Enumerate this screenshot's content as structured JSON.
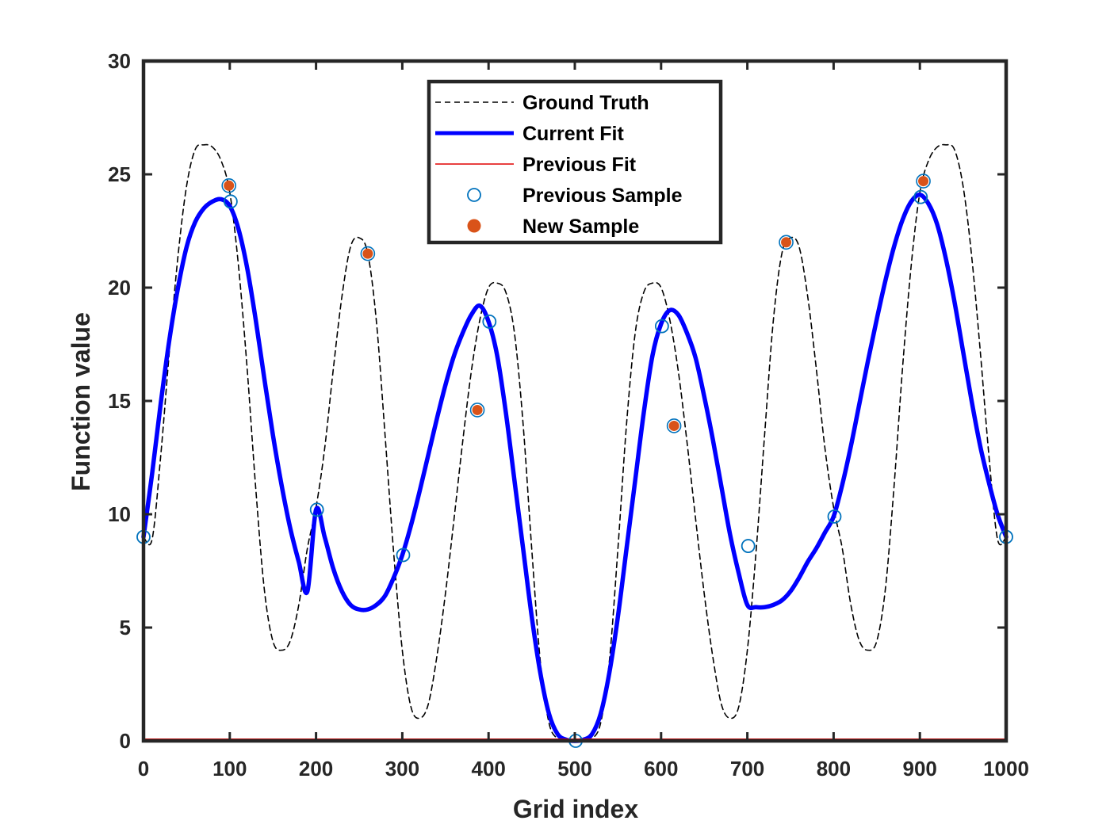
{
  "chart_data": {
    "type": "line",
    "title": "",
    "xlabel": "Grid index",
    "ylabel": "Function value",
    "xlim": [
      0,
      1000
    ],
    "ylim": [
      0,
      30
    ],
    "xticks": [
      0,
      100,
      200,
      300,
      400,
      500,
      600,
      700,
      800,
      900,
      1000
    ],
    "yticks": [
      0,
      5,
      10,
      15,
      20,
      25,
      30
    ],
    "grid": false,
    "legend_position": "top-center",
    "series": [
      {
        "name": "Ground Truth",
        "kind": "line",
        "style": "dashed",
        "color": "#000000",
        "x": [
          0,
          10,
          20,
          30,
          40,
          50,
          60,
          70,
          80,
          90,
          100,
          110,
          120,
          130,
          140,
          150,
          160,
          170,
          180,
          190,
          200,
          210,
          220,
          230,
          240,
          250,
          260,
          270,
          280,
          290,
          300,
          310,
          320,
          330,
          340,
          350,
          360,
          370,
          380,
          390,
          400,
          410,
          420,
          430,
          440,
          450,
          460,
          470,
          480,
          490,
          500,
          510,
          520,
          530,
          540,
          550,
          560,
          570,
          580,
          590,
          600,
          610,
          620,
          630,
          640,
          650,
          660,
          670,
          680,
          690,
          700,
          710,
          720,
          730,
          740,
          750,
          760,
          770,
          780,
          790,
          800,
          810,
          820,
          830,
          840,
          850,
          860,
          870,
          880,
          890,
          900,
          910,
          920,
          930,
          940,
          950,
          960,
          970,
          980,
          990,
          1000
        ],
        "y": [
          9.0,
          8.9,
          12.6,
          17.2,
          21.4,
          24.5,
          26.1,
          26.3,
          26.2,
          25.6,
          24.2,
          21.0,
          16.5,
          11.2,
          6.7,
          4.4,
          4.0,
          4.4,
          6.0,
          8.5,
          10.3,
          12.9,
          16.4,
          19.6,
          21.8,
          22.2,
          21.5,
          18.5,
          13.5,
          8.3,
          4.0,
          1.5,
          1.0,
          1.6,
          3.7,
          6.5,
          9.8,
          13.2,
          16.3,
          18.6,
          20.0,
          20.2,
          19.8,
          18.0,
          14.0,
          8.5,
          3.5,
          0.8,
          0.1,
          0.02,
          0.0,
          0.02,
          0.1,
          0.8,
          3.5,
          8.5,
          14.0,
          18.0,
          19.8,
          20.2,
          20.0,
          18.6,
          16.3,
          13.2,
          9.8,
          6.5,
          3.7,
          1.6,
          1.0,
          1.5,
          4.0,
          8.3,
          13.5,
          18.5,
          21.5,
          22.2,
          21.8,
          19.6,
          16.4,
          12.9,
          10.3,
          8.5,
          6.0,
          4.4,
          4.0,
          4.4,
          6.7,
          11.2,
          16.5,
          21.0,
          24.2,
          25.6,
          26.2,
          26.3,
          26.1,
          24.5,
          21.4,
          17.2,
          12.6,
          8.9,
          9.0
        ]
      },
      {
        "name": "Current Fit",
        "kind": "line",
        "style": "solid",
        "color": "#0000FF",
        "x": [
          0,
          10,
          20,
          30,
          40,
          50,
          60,
          70,
          80,
          90,
          100,
          110,
          120,
          130,
          140,
          150,
          160,
          170,
          180,
          190,
          200,
          210,
          220,
          230,
          240,
          250,
          260,
          270,
          280,
          290,
          300,
          310,
          320,
          330,
          340,
          350,
          360,
          370,
          380,
          390,
          400,
          410,
          420,
          430,
          440,
          450,
          460,
          470,
          480,
          490,
          500,
          510,
          520,
          530,
          540,
          550,
          560,
          570,
          580,
          590,
          600,
          610,
          620,
          630,
          640,
          650,
          660,
          670,
          680,
          690,
          700,
          710,
          720,
          730,
          740,
          750,
          760,
          770,
          780,
          790,
          800,
          810,
          820,
          830,
          840,
          850,
          860,
          870,
          880,
          890,
          900,
          910,
          920,
          930,
          940,
          950,
          960,
          970,
          980,
          990,
          1000
        ],
        "y": [
          9.0,
          11.8,
          14.9,
          17.7,
          20.0,
          21.8,
          22.9,
          23.5,
          23.8,
          23.9,
          23.6,
          22.6,
          20.9,
          18.6,
          16.0,
          13.5,
          11.3,
          9.4,
          7.9,
          6.6,
          10.2,
          9.0,
          7.6,
          6.6,
          6.0,
          5.8,
          5.8,
          6.0,
          6.4,
          7.2,
          8.2,
          9.5,
          11.0,
          12.6,
          14.2,
          15.7,
          17.0,
          18.0,
          18.8,
          19.2,
          18.5,
          17.0,
          14.5,
          11.5,
          8.5,
          5.5,
          3.0,
          1.2,
          0.3,
          0.05,
          0.0,
          0.05,
          0.3,
          1.2,
          3.0,
          5.5,
          8.5,
          11.5,
          14.5,
          17.0,
          18.4,
          19.0,
          18.8,
          18.0,
          16.9,
          15.2,
          13.3,
          11.2,
          9.1,
          7.4,
          6.0,
          5.9,
          5.9,
          6.0,
          6.2,
          6.6,
          7.2,
          7.9,
          8.5,
          9.2,
          9.9,
          11.3,
          13.0,
          14.9,
          16.8,
          18.6,
          20.3,
          21.8,
          23.0,
          23.8,
          24.1,
          23.7,
          22.8,
          21.3,
          19.4,
          17.2,
          15.0,
          13.0,
          11.4,
          10.0,
          9.0
        ]
      },
      {
        "name": "Previous Fit",
        "kind": "line",
        "style": "solid",
        "color": "#E00000",
        "x": [
          0,
          1000
        ],
        "y": [
          0,
          0
        ]
      },
      {
        "name": "Previous Sample",
        "kind": "scatter",
        "marker": "open-circle",
        "color": "#0072BD",
        "x": [
          0,
          101,
          201,
          301,
          401,
          501,
          601,
          701,
          801,
          901,
          1000
        ],
        "y": [
          9.0,
          23.8,
          10.2,
          8.2,
          18.5,
          0.0,
          18.3,
          8.6,
          9.9,
          24.0,
          9.0
        ]
      },
      {
        "name": "New Sample",
        "kind": "scatter",
        "marker": "filled-circle",
        "color": "#D95319",
        "x": [
          99,
          260,
          387,
          615,
          745,
          904
        ],
        "y": [
          24.5,
          21.5,
          14.6,
          13.9,
          22.0,
          24.7
        ]
      }
    ]
  }
}
